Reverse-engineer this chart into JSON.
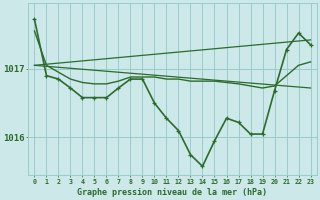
{
  "title": "Graphe pression niveau de la mer (hPa)",
  "bg_color": "#cce8e8",
  "grid_color": "#99cccc",
  "line_color": "#2d6b2d",
  "text_color": "#2d6b2d",
  "xlim": [
    -0.5,
    23.5
  ],
  "ylim": [
    1015.45,
    1017.95
  ],
  "yticks": [
    1016,
    1017
  ],
  "xticks": [
    0,
    1,
    2,
    3,
    4,
    5,
    6,
    7,
    8,
    9,
    10,
    11,
    12,
    13,
    14,
    15,
    16,
    17,
    18,
    19,
    20,
    21,
    22,
    23
  ],
  "series": [
    {
      "x": [
        0,
        1,
        2,
        3,
        4,
        5,
        6,
        7,
        8,
        9,
        10,
        11,
        12,
        13,
        14,
        15,
        16,
        17,
        18,
        19,
        20,
        21,
        22,
        23
      ],
      "y": [
        1017.72,
        1016.9,
        1016.85,
        1016.72,
        1016.58,
        1016.58,
        1016.58,
        1016.72,
        1016.85,
        1016.85,
        1016.5,
        1016.28,
        1016.1,
        1015.75,
        1015.58,
        1015.95,
        1016.28,
        1016.22,
        1016.05,
        1016.05,
        1016.68,
        1017.28,
        1017.52,
        1017.35
      ],
      "marker": "+"
    },
    {
      "x": [
        0,
        1,
        2,
        3,
        4,
        5,
        6,
        7,
        8,
        9,
        10,
        11,
        12,
        13,
        14,
        15,
        16,
        17,
        18,
        19,
        20,
        21,
        22,
        23
      ],
      "y": [
        1017.55,
        1017.05,
        1016.95,
        1016.85,
        1016.8,
        1016.78,
        1016.78,
        1016.82,
        1016.88,
        1016.88,
        1016.88,
        1016.85,
        1016.85,
        1016.82,
        1016.82,
        1016.82,
        1016.8,
        1016.78,
        1016.75,
        1016.72,
        1016.75,
        1016.9,
        1017.05,
        1017.1
      ],
      "marker": null
    },
    {
      "x": [
        0,
        23
      ],
      "y": [
        1017.05,
        1017.42
      ],
      "marker": null
    },
    {
      "x": [
        0,
        23
      ],
      "y": [
        1017.05,
        1016.72
      ],
      "marker": null
    }
  ]
}
